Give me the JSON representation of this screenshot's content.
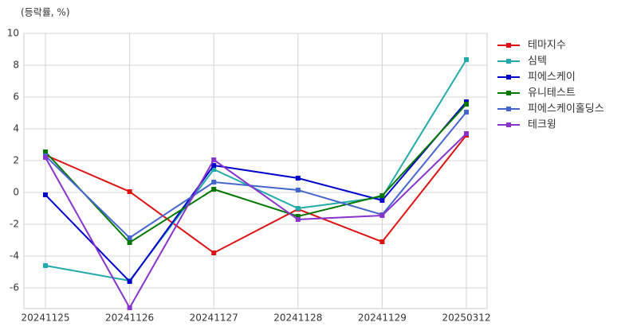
{
  "chart_data": {
    "type": "line",
    "y_axis_label": "(등락률, %)",
    "categories": [
      "20241125",
      "20241126",
      "20241127",
      "20241128",
      "20241129",
      "20250312"
    ],
    "series": [
      {
        "name": "테마지수",
        "color": "#dd1111",
        "values": [
          2.35,
          0.05,
          -3.8,
          -1.05,
          -3.1,
          3.6
        ]
      },
      {
        "name": "심텍",
        "color": "#22aaaa",
        "values": [
          -4.6,
          -5.55,
          1.45,
          -1.0,
          -0.3,
          8.35
        ]
      },
      {
        "name": "피에스케이",
        "color": "#0000cc",
        "values": [
          -0.15,
          -5.6,
          1.7,
          0.9,
          -0.5,
          5.7
        ]
      },
      {
        "name": "유니테스트",
        "color": "#007700",
        "values": [
          2.55,
          -3.15,
          0.2,
          -1.5,
          -0.2,
          5.55
        ]
      },
      {
        "name": "피에스케이홀딩스",
        "color": "#4466cc",
        "values": [
          2.3,
          -2.85,
          0.65,
          0.15,
          -1.4,
          5.05
        ]
      },
      {
        "name": "테크윙",
        "color": "#8833cc",
        "values": [
          2.2,
          -7.25,
          2.05,
          -1.7,
          -1.45,
          3.7
        ]
      }
    ],
    "ylim": [
      -7.3,
      10
    ],
    "yticks": [
      -6,
      -4,
      -2,
      0,
      2,
      4,
      6,
      8,
      10
    ],
    "grid": true,
    "legend": "right"
  }
}
